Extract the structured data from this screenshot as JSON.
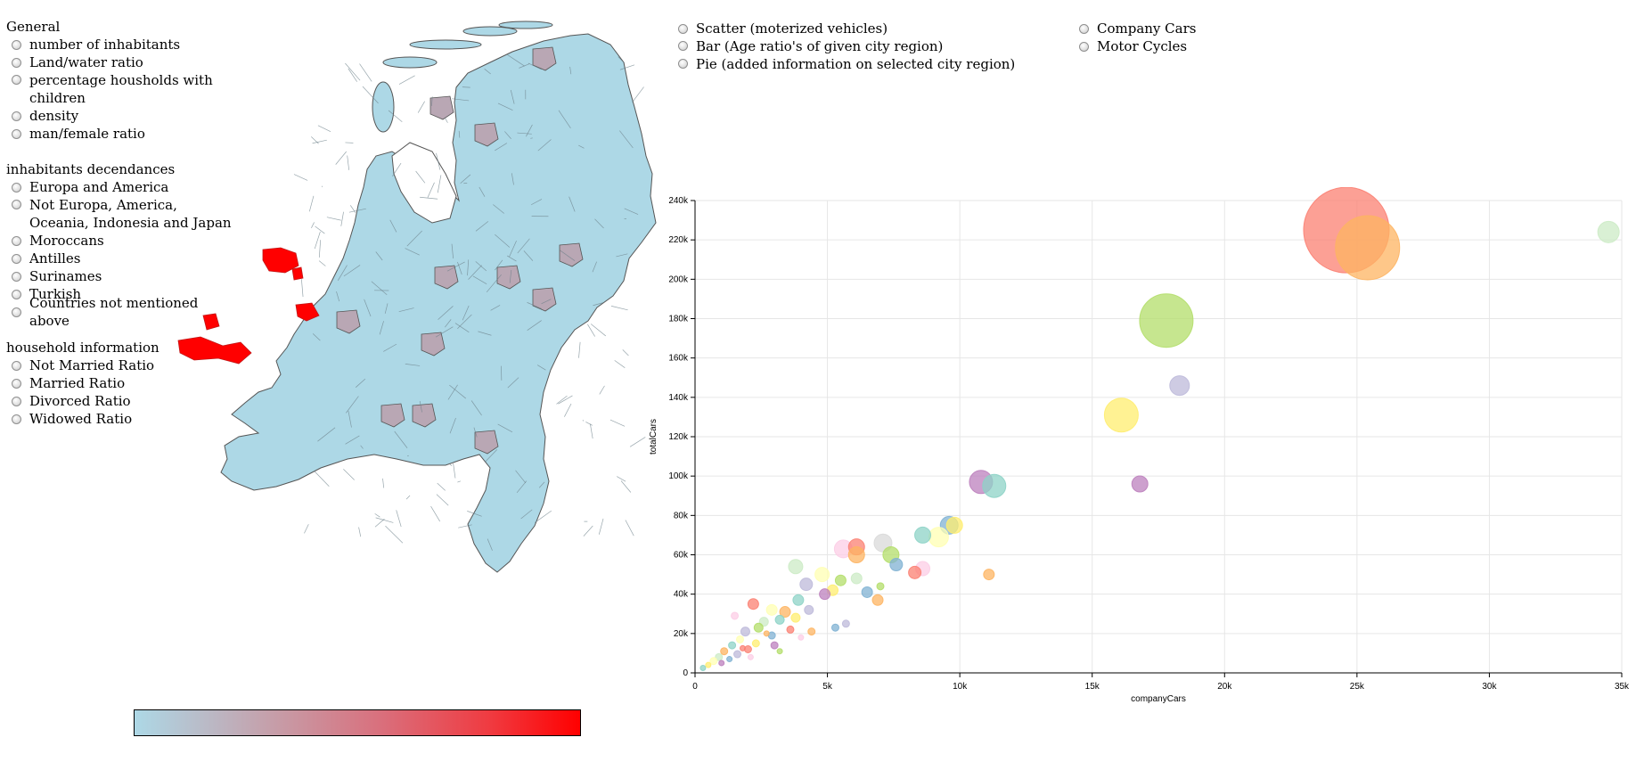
{
  "left_panel": {
    "general": {
      "title": "General",
      "options": [
        "number of inhabitants",
        "Land/water ratio",
        "percentage housholds with children",
        "density",
        "man/female ratio"
      ]
    },
    "descendance": {
      "title": "inhabitants decendances",
      "options": [
        "Europa and America",
        "Not Europa, America, Oceania, Indonesia and Japan",
        "Moroccans",
        "Antilles",
        "Surinames",
        "Turkish",
        "Countries not mentioned above"
      ]
    },
    "household": {
      "title": "household information",
      "options": [
        "Not Married Ratio",
        "Married Ratio",
        "Divorced Ratio",
        "Widowed Ratio"
      ]
    }
  },
  "chart_modes": {
    "primary": [
      "Scatter (moterized vehicles)",
      "Bar (Age ratio's of given city region)",
      "Pie (added information on selected city region)"
    ],
    "secondary": [
      "Company Cars",
      "Motor Cycles"
    ]
  },
  "map": {
    "base_color": "#add8e6",
    "mid_color": "#b9a7b4",
    "high_color": "#ff0000",
    "border_color": "#555555"
  },
  "legend": {
    "from_color": "#add8e6",
    "to_color": "#ff0000"
  },
  "chart_data": {
    "type": "scatter",
    "xlabel": "companyCars",
    "ylabel": "totalCars",
    "xlim": [
      0,
      35000
    ],
    "ylim": [
      0,
      240000
    ],
    "x_ticks": [
      "0",
      "5k",
      "10k",
      "15k",
      "20k",
      "25k",
      "30k",
      "35k"
    ],
    "y_ticks": [
      "0",
      "20k",
      "40k",
      "60k",
      "80k",
      "100k",
      "120k",
      "140k",
      "160k",
      "180k",
      "200k",
      "220k",
      "240k"
    ],
    "grid": true,
    "points": [
      {
        "x": 24600,
        "y": 225000,
        "r": 48,
        "color": "#fb8072"
      },
      {
        "x": 25400,
        "y": 216000,
        "r": 36,
        "color": "#fdb462"
      },
      {
        "x": 34500,
        "y": 224000,
        "r": 12,
        "color": "#ccebc5"
      },
      {
        "x": 17800,
        "y": 179000,
        "r": 30,
        "color": "#b3de69"
      },
      {
        "x": 18300,
        "y": 146000,
        "r": 11,
        "color": "#bebada"
      },
      {
        "x": 16100,
        "y": 131000,
        "r": 19,
        "color": "#ffed6f"
      },
      {
        "x": 16800,
        "y": 96000,
        "r": 9,
        "color": "#bc80bd"
      },
      {
        "x": 10800,
        "y": 97000,
        "r": 13,
        "color": "#bc80bd"
      },
      {
        "x": 11300,
        "y": 95000,
        "r": 13,
        "color": "#8dd3c7"
      },
      {
        "x": 9600,
        "y": 75000,
        "r": 10,
        "color": "#80b1d3"
      },
      {
        "x": 9800,
        "y": 75000,
        "r": 9,
        "color": "#ffed6f"
      },
      {
        "x": 9200,
        "y": 69000,
        "r": 11,
        "color": "#ffffb3"
      },
      {
        "x": 8600,
        "y": 70000,
        "r": 9,
        "color": "#8dd3c7"
      },
      {
        "x": 8600,
        "y": 53000,
        "r": 8,
        "color": "#fccde5"
      },
      {
        "x": 8300,
        "y": 51000,
        "r": 7,
        "color": "#fb8072"
      },
      {
        "x": 11100,
        "y": 50000,
        "r": 6,
        "color": "#fdb462"
      },
      {
        "x": 7100,
        "y": 66000,
        "r": 10,
        "color": "#d9d9d9"
      },
      {
        "x": 7400,
        "y": 60000,
        "r": 9,
        "color": "#b3de69"
      },
      {
        "x": 7600,
        "y": 55000,
        "r": 7,
        "color": "#80b1d3"
      },
      {
        "x": 5600,
        "y": 63000,
        "r": 10,
        "color": "#fccde5"
      },
      {
        "x": 6100,
        "y": 64000,
        "r": 9,
        "color": "#fb8072"
      },
      {
        "x": 6100,
        "y": 60000,
        "r": 9,
        "color": "#fdb462"
      },
      {
        "x": 3800,
        "y": 54000,
        "r": 8,
        "color": "#ccebc5"
      },
      {
        "x": 6100,
        "y": 48000,
        "r": 6,
        "color": "#ccebc5"
      },
      {
        "x": 5500,
        "y": 47000,
        "r": 6,
        "color": "#b3de69"
      },
      {
        "x": 4800,
        "y": 50000,
        "r": 8,
        "color": "#ffffb3"
      },
      {
        "x": 4200,
        "y": 45000,
        "r": 7,
        "color": "#bebada"
      },
      {
        "x": 5200,
        "y": 42000,
        "r": 6,
        "color": "#ffed6f"
      },
      {
        "x": 4900,
        "y": 40000,
        "r": 6,
        "color": "#bc80bd"
      },
      {
        "x": 6500,
        "y": 41000,
        "r": 6,
        "color": "#80b1d3"
      },
      {
        "x": 6900,
        "y": 37000,
        "r": 6,
        "color": "#fdb462"
      },
      {
        "x": 7000,
        "y": 44000,
        "r": 4,
        "color": "#b3de69"
      },
      {
        "x": 3900,
        "y": 37000,
        "r": 6,
        "color": "#8dd3c7"
      },
      {
        "x": 4300,
        "y": 32000,
        "r": 5,
        "color": "#bebada"
      },
      {
        "x": 3400,
        "y": 31000,
        "r": 6,
        "color": "#fdb462"
      },
      {
        "x": 2900,
        "y": 32000,
        "r": 6,
        "color": "#ffffb3"
      },
      {
        "x": 2200,
        "y": 35000,
        "r": 6,
        "color": "#fb8072"
      },
      {
        "x": 1500,
        "y": 29000,
        "r": 4,
        "color": "#fccde5"
      },
      {
        "x": 5700,
        "y": 25000,
        "r": 4,
        "color": "#bebada"
      },
      {
        "x": 5300,
        "y": 23000,
        "r": 4,
        "color": "#80b1d3"
      },
      {
        "x": 3800,
        "y": 28000,
        "r": 5,
        "color": "#ffed6f"
      },
      {
        "x": 3200,
        "y": 27000,
        "r": 5,
        "color": "#8dd3c7"
      },
      {
        "x": 2600,
        "y": 26000,
        "r": 5,
        "color": "#ccebc5"
      },
      {
        "x": 2400,
        "y": 23000,
        "r": 5,
        "color": "#b3de69"
      },
      {
        "x": 3600,
        "y": 22000,
        "r": 4,
        "color": "#fb8072"
      },
      {
        "x": 4400,
        "y": 21000,
        "r": 4,
        "color": "#fdb462"
      },
      {
        "x": 1900,
        "y": 21000,
        "r": 5,
        "color": "#bebada"
      },
      {
        "x": 2900,
        "y": 19000,
        "r": 4,
        "color": "#80b1d3"
      },
      {
        "x": 4000,
        "y": 18000,
        "r": 3,
        "color": "#fccde5"
      },
      {
        "x": 1700,
        "y": 17000,
        "r": 4,
        "color": "#ffffb3"
      },
      {
        "x": 2300,
        "y": 15000,
        "r": 4,
        "color": "#ffed6f"
      },
      {
        "x": 3000,
        "y": 14000,
        "r": 4,
        "color": "#bc80bd"
      },
      {
        "x": 1400,
        "y": 14000,
        "r": 4,
        "color": "#8dd3c7"
      },
      {
        "x": 2000,
        "y": 12000,
        "r": 4,
        "color": "#fb8072"
      },
      {
        "x": 3200,
        "y": 11000,
        "r": 3,
        "color": "#b3de69"
      },
      {
        "x": 1100,
        "y": 11000,
        "r": 4,
        "color": "#fdb462"
      },
      {
        "x": 1600,
        "y": 9500,
        "r": 4,
        "color": "#bebada"
      },
      {
        "x": 900,
        "y": 8000,
        "r": 4,
        "color": "#ccebc5"
      },
      {
        "x": 1300,
        "y": 7000,
        "r": 3,
        "color": "#80b1d3"
      },
      {
        "x": 700,
        "y": 6000,
        "r": 4,
        "color": "#ffffb3"
      },
      {
        "x": 2100,
        "y": 8000,
        "r": 3,
        "color": "#fccde5"
      },
      {
        "x": 500,
        "y": 4000,
        "r": 3,
        "color": "#ffed6f"
      },
      {
        "x": 1000,
        "y": 5000,
        "r": 3,
        "color": "#bc80bd"
      },
      {
        "x": 300,
        "y": 2500,
        "r": 3,
        "color": "#8dd3c7"
      },
      {
        "x": 1800,
        "y": 12500,
        "r": 3,
        "color": "#fb8072"
      },
      {
        "x": 2700,
        "y": 20000,
        "r": 3,
        "color": "#fdb462"
      }
    ]
  }
}
